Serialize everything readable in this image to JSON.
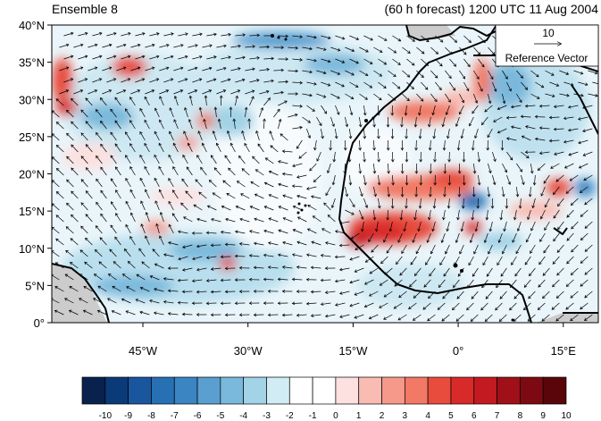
{
  "title_left": "Ensemble 8",
  "title_right": "(60 h forecast) 1200 UTC 11 Aug 2004",
  "reference_vector": {
    "magnitude": "10",
    "label": "Reference Vector"
  },
  "axes": {
    "lat_labels": [
      "40°N",
      "35°N",
      "30°N",
      "25°N",
      "20°N",
      "15°N",
      "10°N",
      "5°N",
      "0°"
    ],
    "lat_values": [
      40,
      35,
      30,
      25,
      20,
      15,
      10,
      5,
      0
    ],
    "lon_labels": [
      "45°W",
      "30°W",
      "15°W",
      "0°",
      "15°E"
    ],
    "lon_values": [
      -45,
      -30,
      -15,
      0,
      15
    ],
    "lon_range": [
      -58,
      20
    ],
    "lat_range": [
      0,
      40
    ]
  },
  "colorbar": {
    "labels": [
      "-10",
      "-9",
      "-8",
      "-7",
      "-6",
      "-5",
      "-4",
      "-3",
      "-2",
      "-1",
      "0",
      "1",
      "2",
      "3",
      "4",
      "5",
      "6",
      "7",
      "8",
      "9",
      "10"
    ],
    "colors": [
      "#08224d",
      "#0b3a78",
      "#1a569e",
      "#2770b4",
      "#3a85c2",
      "#5a9fd0",
      "#7ab9dc",
      "#a2d3e6",
      "#d2ecf6",
      "#ffffff",
      "#ffffff",
      "#fde0e0",
      "#f9bcb3",
      "#f6998b",
      "#f17965",
      "#e84c3d",
      "#d92a2a",
      "#c21a20",
      "#a01018",
      "#7d0a12",
      "#5a0509"
    ]
  },
  "colors": {
    "land_fill": "#cccccc",
    "coast": "#000000",
    "vector": "#000000"
  }
}
